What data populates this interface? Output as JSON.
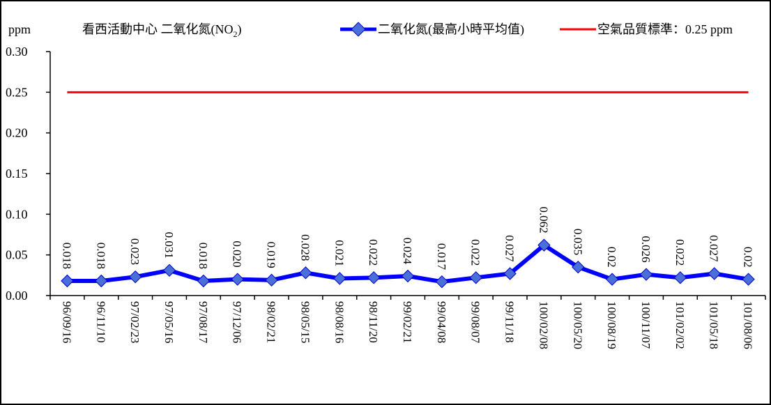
{
  "chart_data": {
    "type": "line",
    "title": "看西活動中心  二氧化氮(NO₂)",
    "title_main": "看西活動中心  二氧化氮(NO",
    "title_sub": "2",
    "title_end": ")",
    "ylabel": "ppm",
    "ylim": [
      0,
      0.3
    ],
    "yticks": [
      "0.00",
      "0.05",
      "0.10",
      "0.15",
      "0.20",
      "0.25",
      "0.30"
    ],
    "ytick_values": [
      0,
      0.05,
      0.1,
      0.15,
      0.2,
      0.25,
      0.3
    ],
    "categories": [
      "96/09/16",
      "96/11/10",
      "97/02/23",
      "97/05/16",
      "97/08/17",
      "97/12/06",
      "98/02/21",
      "98/05/15",
      "98/08/16",
      "98/11/20",
      "99/02/21",
      "99/04/08",
      "99/08/07",
      "99/11/18",
      "100/02/08",
      "100/05/20",
      "100/08/19",
      "100/11/07",
      "101/02/02",
      "101/05/18",
      "101/08/06"
    ],
    "series": [
      {
        "name": "二氧化氮(最高小時平均值)",
        "color": "#0000ff",
        "values": [
          0.018,
          0.018,
          0.023,
          0.031,
          0.018,
          0.02,
          0.019,
          0.028,
          0.021,
          0.022,
          0.024,
          0.017,
          0.022,
          0.027,
          0.062,
          0.035,
          0.02,
          0.026,
          0.022,
          0.027,
          0.02
        ],
        "labels": [
          "0.018",
          "0.018",
          "0.023",
          "0.031",
          "0.018",
          "0.020",
          "0.019",
          "0.028",
          "0.021",
          "0.022",
          "0.024",
          "0.017",
          "0.022",
          "0.027",
          "0.062",
          "0.035",
          "0.02",
          "0.026",
          "0.022",
          "0.027",
          "0.02"
        ]
      },
      {
        "name": "空氣品質標準：0.25 ppm",
        "color": "#ff0000",
        "value": 0.25
      }
    ],
    "legend_position": "top-right",
    "grid": false
  }
}
